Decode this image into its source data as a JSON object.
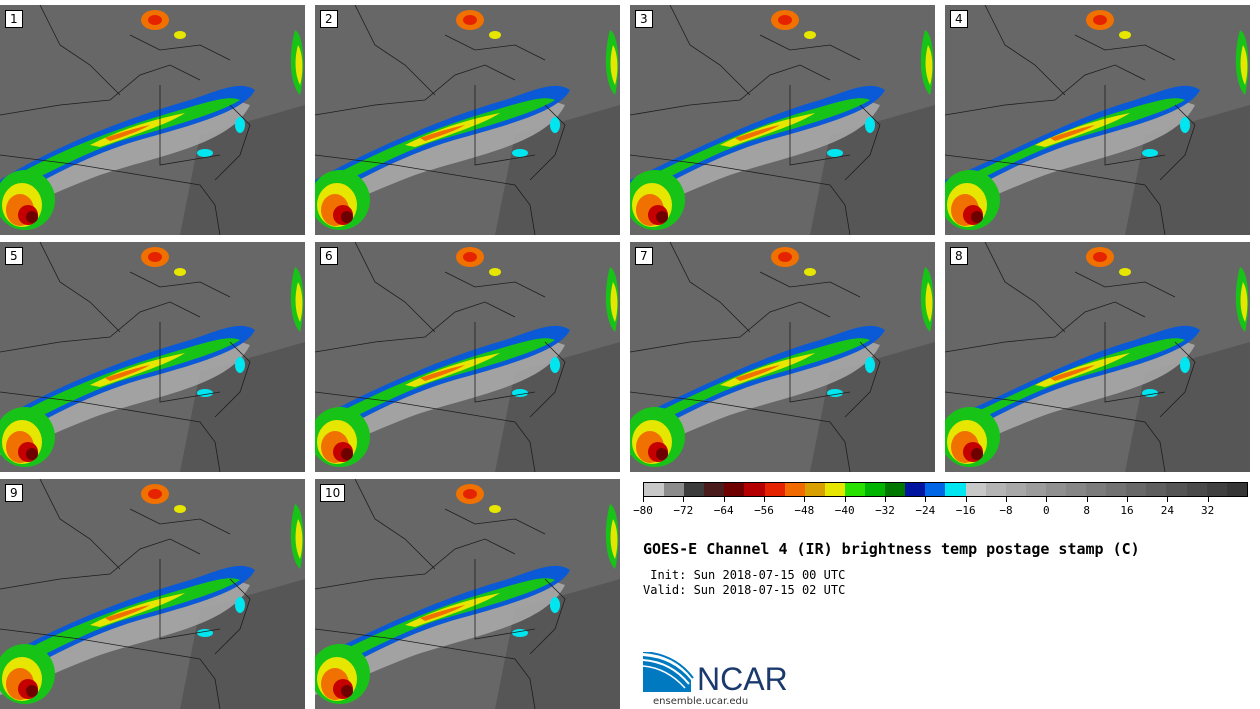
{
  "panels": [
    {
      "label": "1"
    },
    {
      "label": "2"
    },
    {
      "label": "3"
    },
    {
      "label": "4"
    },
    {
      "label": "5"
    },
    {
      "label": "6"
    },
    {
      "label": "7"
    },
    {
      "label": "8"
    },
    {
      "label": "9"
    },
    {
      "label": "10"
    }
  ],
  "colorbar": {
    "colors": [
      "#c8c8c8",
      "#8c8c8c",
      "#3c3c3c",
      "#4b1c1c",
      "#6e0000",
      "#b40000",
      "#e62300",
      "#f06a00",
      "#d7a000",
      "#e6e600",
      "#28e100",
      "#00b400",
      "#007800",
      "#0014a0",
      "#0066e6",
      "#00e6f0",
      "#c8c8c8",
      "#b4b4b4",
      "#a8a8a8",
      "#9c9c9c",
      "#909090",
      "#868686",
      "#7c7c7c",
      "#727272",
      "#686868",
      "#5e5e5e",
      "#545454",
      "#4a4a4a",
      "#404040",
      "#363636"
    ],
    "tick_labels": [
      "−80",
      "−72",
      "−64",
      "−56",
      "−48",
      "−40",
      "−32",
      "−24",
      "−16",
      "−8",
      "0",
      "8",
      "16",
      "24",
      "32"
    ],
    "range": [
      -80,
      40
    ]
  },
  "title": "GOES-E Channel 4 (IR) brightness temp postage stamp (C)",
  "init_text": " Init: Sun 2018-07-15 00 UTC",
  "valid_text": "Valid: Sun 2018-07-15 02 UTC",
  "logo": {
    "text": "NCAR",
    "url": "ensemble.ucar.edu",
    "color": "#1a3a6e"
  }
}
